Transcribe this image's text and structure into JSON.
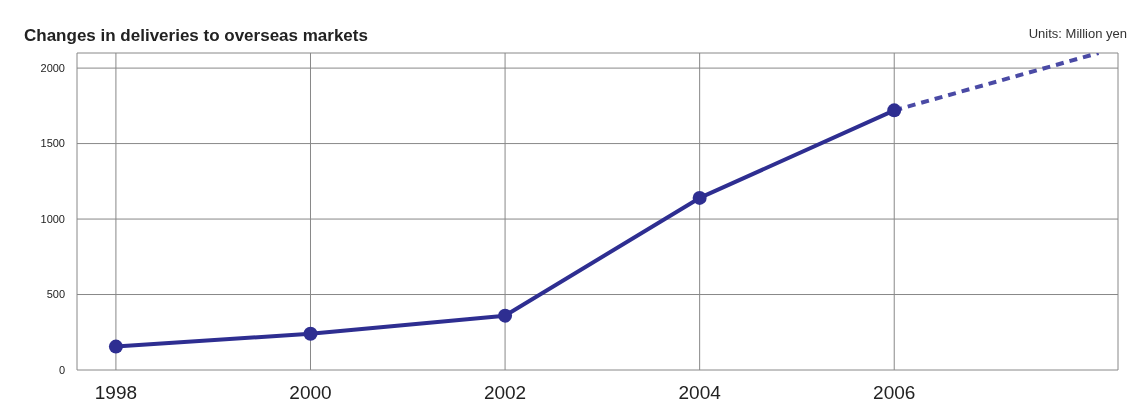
{
  "chart_data": {
    "type": "line",
    "title": "Changes in deliveries to overseas markets",
    "annotations": [
      "Units: Million yen"
    ],
    "xlim": [
      1997.6,
      2008.3
    ],
    "xticks": [
      1998,
      2000,
      2002,
      2004,
      2006
    ],
    "ylim": [
      0,
      2100
    ],
    "yticks": [
      0,
      500,
      1000,
      1500,
      2000
    ],
    "grid": true,
    "series": [
      {
        "color": "#2e2e91",
        "x": [
          1998,
          2000,
          2002,
          2004,
          2006
        ],
        "values": [
          155,
          240,
          360,
          1140,
          1720
        ],
        "marker": "circle",
        "line_style": "solid"
      },
      {
        "color": "#4a4aa5",
        "x": [
          2006,
          2008.1
        ],
        "values": [
          1720,
          2100
        ],
        "marker": "none",
        "line_style": "dashed"
      }
    ]
  }
}
